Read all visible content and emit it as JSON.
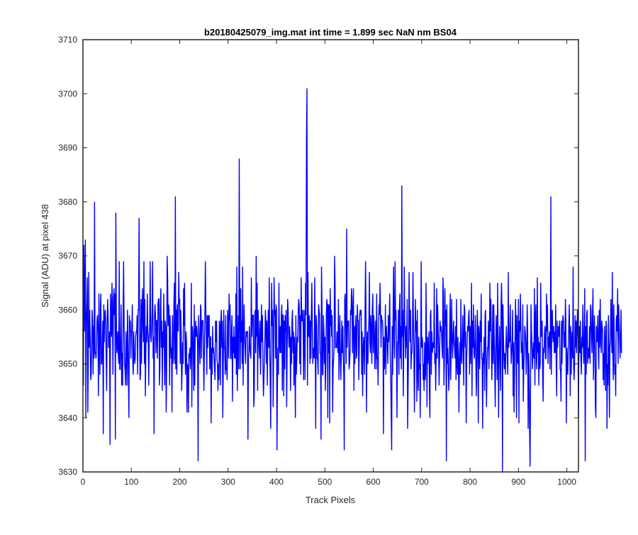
{
  "chart_data": {
    "type": "line",
    "title": "b20180425079_img.mat int time = 1.899 sec  NaN nm BS04",
    "xlabel": "Track Pixels",
    "ylabel": "Signal (ADU) at pixel 438",
    "xlim": [
      0,
      1024
    ],
    "ylim": [
      3630,
      3710
    ],
    "xticks": [
      0,
      100,
      200,
      300,
      400,
      500,
      600,
      700,
      800,
      900,
      1000
    ],
    "yticks": [
      3630,
      3640,
      3650,
      3660,
      3670,
      3680,
      3690,
      3700,
      3710
    ],
    "grid": false,
    "line_color": "#0000ff",
    "series": [
      {
        "x_start": 1,
        "x_step": 1,
        "values": [
          3646,
          3672,
          3656,
          3664,
          3673,
          3640,
          3657,
          3661,
          3666,
          3641,
          3650,
          3667,
          3653,
          3660,
          3655,
          3647,
          3648,
          3653,
          3660,
          3658,
          3648,
          3657,
          3651,
          3680,
          3652,
          3652,
          3651,
          3653,
          3658,
          3659,
          3656,
          3644,
          3663,
          3653,
          3648,
          3660,
          3663,
          3650,
          3650,
          3653,
          3658,
          3637,
          3661,
          3654,
          3659,
          3660,
          3658,
          3651,
          3645,
          3657,
          3662,
          3659,
          3653,
          3654,
          3656,
          3635,
          3663,
          3659,
          3655,
          3665,
          3659,
          3648,
          3662,
          3664,
          3659,
          3663,
          3636,
          3678,
          3659,
          3652,
          3653,
          3656,
          3652,
          3650,
          3669,
          3649,
          3649,
          3655,
          3661,
          3646,
          3652,
          3646,
          3659,
          3669,
          3658,
          3650,
          3649,
          3646,
          3656,
          3652,
          3646,
          3660,
          3654,
          3647,
          3640,
          3659,
          3656,
          3658,
          3651,
          3656,
          3656,
          3661,
          3650,
          3648,
          3656,
          3652,
          3650,
          3651,
          3655,
          3656,
          3656,
          3659,
          3648,
          3660,
          3660,
          3677,
          3658,
          3647,
          3648,
          3662,
          3650,
          3660,
          3664,
          3657,
          3654,
          3669,
          3650,
          3662,
          3644,
          3652,
          3657,
          3654,
          3663,
          3656,
          3655,
          3646,
          3655,
          3657,
          3669,
          3655,
          3654,
          3656,
          3660,
          3669,
          3651,
          3655,
          3637,
          3659,
          3661,
          3659,
          3652,
          3658,
          3658,
          3651,
          3661,
          3662,
          3662,
          3646,
          3649,
          3661,
          3664,
          3653,
          3658,
          3645,
          3656,
          3653,
          3663,
          3654,
          3646,
          3658,
          3657,
          3641,
          3649,
          3670,
          3666,
          3657,
          3661,
          3660,
          3646,
          3659,
          3655,
          3651,
          3653,
          3641,
          3659,
          3650,
          3651,
          3661,
          3665,
          3650,
          3681,
          3649,
          3660,
          3648,
          3661,
          3657,
          3656,
          3667,
          3661,
          3662,
          3650,
          3660,
          3656,
          3645,
          3649,
          3654,
          3650,
          3664,
          3657,
          3665,
          3652,
          3648,
          3656,
          3654,
          3641,
          3650,
          3649,
          3641,
          3652,
          3651,
          3653,
          3649,
          3653,
          3665,
          3642,
          3657,
          3656,
          3652,
          3645,
          3661,
          3646,
          3655,
          3658,
          3655,
          3657,
          3656,
          3653,
          3632,
          3659,
          3656,
          3653,
          3650,
          3661,
          3660,
          3651,
          3658,
          3658,
          3658,
          3652,
          3645,
          3652,
          3659,
          3669,
          3660,
          3655,
          3648,
          3659,
          3653,
          3659,
          3655,
          3659,
          3649,
          3655,
          3655,
          3639,
          3653,
          3648,
          3657,
          3652,
          3653,
          3651,
          3649,
          3647,
          3658,
          3654,
          3658,
          3651,
          3650,
          3645,
          3650,
          3647,
          3658,
          3657,
          3646,
          3658,
          3660,
          3653,
          3658,
          3640,
          3649,
          3660,
          3653,
          3653,
          3648,
          3659,
          3649,
          3649,
          3647,
          3660,
          3658,
          3651,
          3663,
          3658,
          3661,
          3651,
          3651,
          3656,
          3659,
          3643,
          3655,
          3652,
          3657,
          3651,
          3655,
          3651,
          3663,
          3648,
          3668,
          3645,
          3653,
          3659,
          3649,
          3688,
          3659,
          3649,
          3664,
          3654,
          3658,
          3650,
          3668,
          3646,
          3654,
          3661,
          3655,
          3653,
          3650,
          3656,
          3655,
          3656,
          3656,
          3636,
          3651,
          3652,
          3657,
          3653,
          3652,
          3651,
          3666,
          3655,
          3658,
          3659,
          3659,
          3642,
          3644,
          3659,
          3660,
          3652,
          3670,
          3655,
          3665,
          3645,
          3660,
          3657,
          3653,
          3651,
          3658,
          3648,
          3654,
          3661,
          3654,
          3659,
          3650,
          3644,
          3647,
          3651,
          3654,
          3660,
          3658,
          3650,
          3658,
          3646,
          3655,
          3660,
          3653,
          3666,
          3652,
          3647,
          3638,
          3656,
          3665,
          3657,
          3660,
          3642,
          3651,
          3666,
          3659,
          3660,
          3651,
          3661,
          3660,
          3634,
          3647,
          3653,
          3648,
          3665,
          3654,
          3652,
          3657,
          3652,
          3659,
          3661,
          3645,
          3659,
          3659,
          3644,
          3658,
          3649,
          3659,
          3656,
          3660,
          3642,
          3652,
          3662,
          3660,
          3655,
          3653,
          3657,
          3655,
          3645,
          3655,
          3650,
          3658,
          3660,
          3652,
          3656,
          3646,
          3655,
          3651,
          3640,
          3659,
          3648,
          3651,
          3655,
          3654,
          3660,
          3662,
          3661,
          3650,
          3659,
          3648,
          3666,
          3658,
          3658,
          3660,
          3657,
          3647,
          3660,
          3656,
          3647,
          3665,
          3659,
          3692,
          3701,
          3646,
          3667,
          3655,
          3656,
          3659,
          3650,
          3658,
          3651,
          3659,
          3665,
          3657,
          3650,
          3653,
          3652,
          3651,
          3666,
          3655,
          3638,
          3659,
          3657,
          3651,
          3651,
          3648,
          3661,
          3660,
          3659,
          3652,
          3652,
          3636,
          3668,
          3661,
          3648,
          3648,
          3659,
          3656,
          3650,
          3655,
          3645,
          3650,
          3659,
          3662,
          3661,
          3640,
          3661,
          3652,
          3661,
          3639,
          3664,
          3657,
          3660,
          3655,
          3659,
          3641,
          3649,
          3651,
          3653,
          3670,
          3665,
          3653,
          3653,
          3653,
          3656,
          3654,
          3652,
          3662,
          3647,
          3654,
          3659,
          3651,
          3647,
          3652,
          3658,
          3652,
          3657,
          3651,
          3648,
          3634,
          3662,
          3663,
          3657,
          3650,
          3675,
          3653,
          3658,
          3657,
          3658,
          3649,
          3650,
          3652,
          3660,
          3659,
          3664,
          3662,
          3652,
          3659,
          3664,
          3645,
          3657,
          3650,
          3656,
          3659,
          3651,
          3652,
          3661,
          3658,
          3658,
          3647,
          3652,
          3659,
          3660,
          3659,
          3660,
          3648,
          3656,
          3644,
          3652,
          3655,
          3653,
          3648,
          3660,
          3669,
          3659,
          3641,
          3654,
          3656,
          3650,
          3656,
          3658,
          3667,
          3654,
          3652,
          3659,
          3656,
          3650,
          3660,
          3663,
          3652,
          3659,
          3657,
          3649,
          3654,
          3658,
          3649,
          3663,
          3651,
          3651,
          3646,
          3657,
          3661,
          3659,
          3665,
          3659,
          3653,
          3659,
          3658,
          3658,
          3656,
          3637,
          3655,
          3649,
          3651,
          3661,
          3648,
          3657,
          3655,
          3654,
          3650,
          3659,
          3654,
          3658,
          3663,
          3652,
          3648,
          3641,
          3634,
          3657,
          3648,
          3660,
          3668,
          3654,
          3651,
          3669,
          3658,
          3660,
          3652,
          3640,
          3654,
          3654,
          3660,
          3648,
          3660,
          3663,
          3651,
          3657,
          3649,
          3683,
          3655,
          3660,
          3644,
          3653,
          3668,
          3658,
          3655,
          3651,
          3657,
          3653,
          3662,
          3638,
          3646,
          3654,
          3667,
          3659,
          3654,
          3660,
          3649,
          3652,
          3652,
          3656,
          3667,
          3658,
          3651,
          3641,
          3652,
          3662,
          3656,
          3658,
          3643,
          3660,
          3648,
          3645,
          3655,
          3649,
          3650,
          3640,
          3654,
          3669,
          3653,
          3655,
          3654,
          3647,
          3650,
          3645,
          3654,
          3647,
          3648,
          3665,
          3654,
          3642,
          3655,
          3650,
          3652,
          3656,
          3645,
          3640,
          3659,
          3660,
          3648,
          3656,
          3652,
          3653,
          3654,
          3653,
          3665,
          3650,
          3652,
          3645,
          3652,
          3664,
          3651,
          3661,
          3657,
          3653,
          3646,
          3651,
          3658,
          3656,
          3657,
          3656,
          3653,
          3651,
          3666,
          3663,
          3646,
          3651,
          3664,
          3657,
          3660,
          3632,
          3661,
          3650,
          3653,
          3649,
          3645,
          3648,
          3657,
          3663,
          3647,
          3653,
          3662,
          3655,
          3651,
          3655,
          3658,
          3654,
          3653,
          3651,
          3657,
          3647,
          3662,
          3650,
          3648,
          3655,
          3651,
          3641,
          3650,
          3654,
          3648,
          3662,
          3652,
          3650,
          3654,
          3659,
          3653,
          3646,
          3661,
          3660,
          3653,
          3656,
          3639,
          3651,
          3654,
          3657,
          3656,
          3659,
          3660,
          3648,
          3657,
          3650,
          3654,
          3665,
          3644,
          3658,
          3653,
          3661,
          3652,
          3651,
          3654,
          3659,
          3650,
          3644,
          3651,
          3660,
          3656,
          3639,
          3657,
          3655,
          3649,
          3658,
          3654,
          3663,
          3651,
          3651,
          3638,
          3652,
          3650,
          3655,
          3645,
          3659,
          3660,
          3650,
          3642,
          3650,
          3653,
          3653,
          3658,
          3649,
          3655,
          3665,
          3656,
          3662,
          3654,
          3647,
          3652,
          3661,
          3650,
          3661,
          3655,
          3649,
          3642,
          3652,
          3659,
          3655,
          3647,
          3665,
          3653,
          3640,
          3652,
          3657,
          3651,
          3645,
          3660,
          3665,
          3660,
          3630,
          3661,
          3655,
          3651,
          3649,
          3652,
          3648,
          3653,
          3657,
          3654,
          3651,
          3648,
          3667,
          3653,
          3655,
          3654,
          3661,
          3655,
          3650,
          3652,
          3654,
          3660,
          3644,
          3654,
          3641,
          3649,
          3655,
          3662,
          3656,
          3640,
          3659,
          3651,
          3650,
          3662,
          3639,
          3658,
          3656,
          3663,
          3657,
          3652,
          3654,
          3649,
          3661,
          3643,
          3649,
          3652,
          3657,
          3656,
          3654,
          3648,
          3652,
          3661,
          3656,
          3638,
          3652,
          3649,
          3638,
          3631,
          3646,
          3661,
          3656,
          3653,
          3649,
          3652,
          3654,
          3651,
          3664,
          3646,
          3658,
          3661,
          3651,
          3649,
          3666,
          3652,
          3655,
          3646,
          3654,
          3649,
          3650,
          3665,
          3655,
          3656,
          3658,
          3648,
          3643,
          3653,
          3652,
          3656,
          3657,
          3651,
          3651,
          3663,
          3656,
          3661,
          3650,
          3655,
          3653,
          3656,
          3649,
          3655,
          3681,
          3648,
          3659,
          3660,
          3655,
          3654,
          3657,
          3652,
          3656,
          3652,
          3661,
          3650,
          3644,
          3658,
          3653,
          3656,
          3657,
          3655,
          3658,
          3649,
          3649,
          3643,
          3658,
          3650,
          3657,
          3659,
          3658,
          3653,
          3656,
          3653,
          3662,
          3658,
          3639,
          3653,
          3650,
          3648,
          3653,
          3657,
          3661,
          3655,
          3644,
          3657,
          3648,
          3654,
          3656,
          3651,
          3668,
          3650,
          3647,
          3650,
          3659,
          3653,
          3658,
          3652,
          3657,
          3660,
          3655,
          3640,
          3653,
          3657,
          3652,
          3658,
          3651,
          3648,
          3655,
          3653,
          3661,
          3654,
          3650,
          3655,
          3664,
          3632,
          3657,
          3648,
          3659,
          3660,
          3650,
          3652,
          3653,
          3651,
          3657,
          3650,
          3661,
          3660,
          3655,
          3652,
          3659,
          3664,
          3647,
          3654,
          3659,
          3653,
          3642,
          3640,
          3657,
          3655,
          3654,
          3659,
          3653,
          3649,
          3660,
          3653,
          3662,
          3655,
          3652,
          3658,
          3657,
          3656,
          3647,
          3652,
          3646,
          3657,
          3654,
          3645,
          3658,
          3657,
          3638,
          3650,
          3646,
          3659,
          3654,
          3640,
          3653,
          3654,
          3662,
          3657,
          3652,
          3667,
          3652,
          3647,
          3661,
          3655,
          3648,
          3650,
          3644,
          3658,
          3659,
          3656,
          3664,
          3650,
          3661,
          3658,
          3655,
          3651,
          3654,
          3660,
          3652
        ]
      }
    ]
  }
}
